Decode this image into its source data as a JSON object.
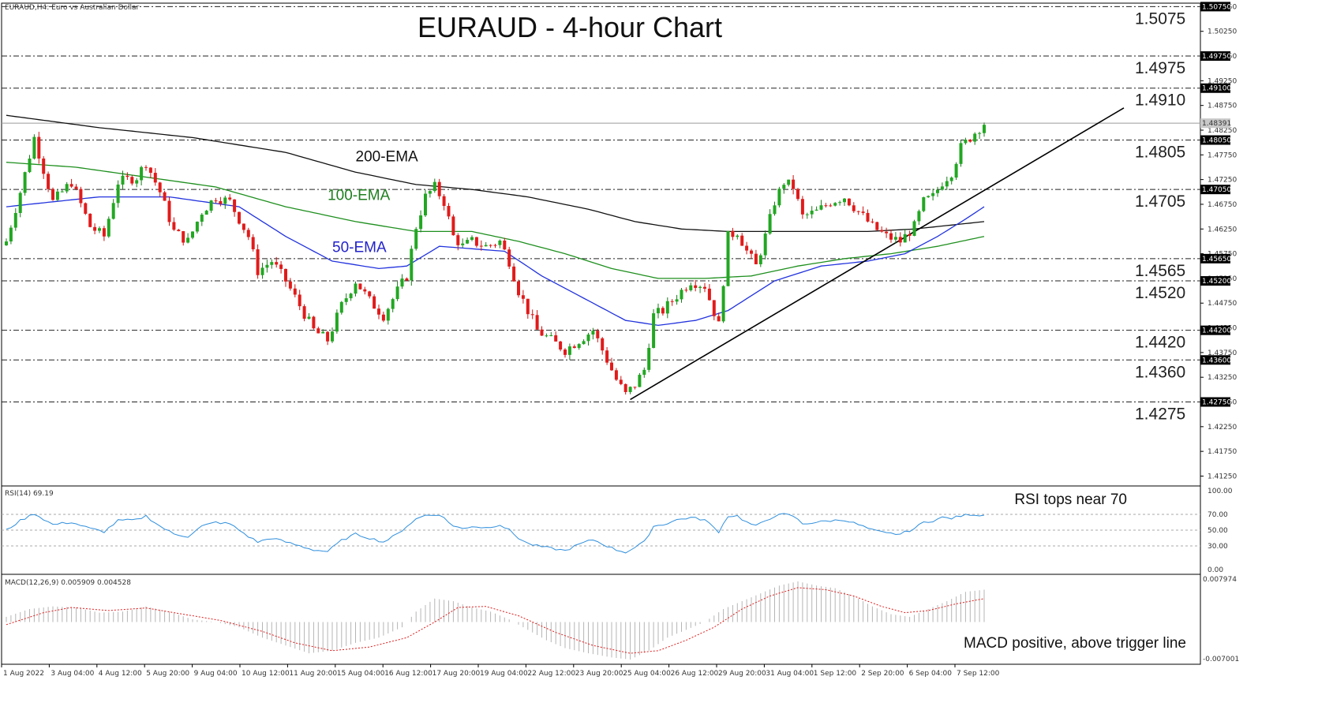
{
  "header": {
    "symbol_info": "EURAUD,H4:  Euro vs Australian Dollar",
    "title": "EURAUD - 4-hour Chart"
  },
  "chart_data": {
    "type": "candlestick",
    "title": "EURAUD - 4-hour Chart",
    "main_axis": {
      "ylim": [
        1.4105,
        1.5082
      ],
      "ticks": [
        "1.50750",
        "1.50250",
        "1.49750",
        "1.49250",
        "1.48750",
        "1.48250",
        "1.47750",
        "1.47250",
        "1.46750",
        "1.46250",
        "1.45750",
        "1.45250",
        "1.44750",
        "1.44250",
        "1.43750",
        "1.43250",
        "1.42750",
        "1.42250",
        "1.41750",
        "1.41250"
      ],
      "current_price": "1.48391"
    },
    "levels": [
      {
        "value": 1.5075,
        "label": "1.5075",
        "axis_tag": "1.50750"
      },
      {
        "value": 1.4975,
        "label": "1.4975",
        "axis_tag": "1.49750"
      },
      {
        "value": 1.491,
        "label": "1.4910",
        "axis_tag": "1.49100"
      },
      {
        "value": 1.4805,
        "label": "1.4805",
        "axis_tag": "1.48050"
      },
      {
        "value": 1.4705,
        "label": "1.4705",
        "axis_tag": "1.47050"
      },
      {
        "value": 1.4565,
        "label": "1.4565",
        "axis_tag": "1.45650"
      },
      {
        "value": 1.452,
        "label": "1.4520",
        "axis_tag": "1.45200"
      },
      {
        "value": 1.442,
        "label": "1.4420",
        "axis_tag": "1.44200"
      },
      {
        "value": 1.436,
        "label": "1.4360",
        "axis_tag": "1.43600"
      },
      {
        "value": 1.4275,
        "label": "1.4275",
        "axis_tag": "1.42750"
      }
    ],
    "x_labels": [
      "1 Aug 2022",
      "3 Aug 04:00",
      "4 Aug 12:00",
      "5 Aug 20:00",
      "9 Aug 04:00",
      "10 Aug 12:00",
      "11 Aug 20:00",
      "15 Aug 04:00",
      "16 Aug 12:00",
      "17 Aug 20:00",
      "19 Aug 04:00",
      "22 Aug 12:00",
      "23 Aug 20:00",
      "25 Aug 04:00",
      "26 Aug 12:00",
      "29 Aug 20:00",
      "31 Aug 04:00",
      "1 Sep 12:00",
      "2 Sep 20:00",
      "6 Sep 04:00",
      "7 Sep 12:00"
    ],
    "close_path": [
      [
        0,
        1.46
      ],
      [
        3,
        1.47
      ],
      [
        6,
        1.481
      ],
      [
        10,
        1.468
      ],
      [
        14,
        1.472
      ],
      [
        18,
        1.463
      ],
      [
        21,
        1.461
      ],
      [
        24,
        1.472
      ],
      [
        28,
        1.473
      ],
      [
        30,
        1.476
      ],
      [
        33,
        1.47
      ],
      [
        36,
        1.462
      ],
      [
        39,
        1.46
      ],
      [
        42,
        1.466
      ],
      [
        45,
        1.469
      ],
      [
        48,
        1.468
      ],
      [
        52,
        1.461
      ],
      [
        54,
        1.454
      ],
      [
        57,
        1.456
      ],
      [
        60,
        1.452
      ],
      [
        63,
        1.447
      ],
      [
        66,
        1.442
      ],
      [
        69,
        1.44
      ],
      [
        72,
        1.447
      ],
      [
        75,
        1.452
      ],
      [
        78,
        1.448
      ],
      [
        81,
        1.445
      ],
      [
        84,
        1.45
      ],
      [
        86,
        1.453
      ],
      [
        88,
        1.463
      ],
      [
        90,
        1.469
      ],
      [
        92,
        1.471
      ],
      [
        94,
        1.468
      ],
      [
        96,
        1.461
      ],
      [
        98,
        1.459
      ],
      [
        100,
        1.46
      ],
      [
        103,
        1.459
      ],
      [
        106,
        1.46
      ],
      [
        108,
        1.456
      ],
      [
        110,
        1.45
      ],
      [
        112,
        1.446
      ],
      [
        114,
        1.442
      ],
      [
        117,
        1.44
      ],
      [
        120,
        1.438
      ],
      [
        123,
        1.44
      ],
      [
        126,
        1.442
      ],
      [
        129,
        1.436
      ],
      [
        131,
        1.432
      ],
      [
        133,
        1.429
      ],
      [
        135,
        1.431
      ],
      [
        137,
        1.434
      ],
      [
        139,
        1.445
      ],
      [
        141,
        1.446
      ],
      [
        144,
        1.449
      ],
      [
        147,
        1.452
      ],
      [
        150,
        1.451
      ],
      [
        153,
        1.443
      ],
      [
        155,
        1.461
      ],
      [
        157,
        1.462
      ],
      [
        159,
        1.458
      ],
      [
        161,
        1.455
      ],
      [
        163,
        1.461
      ],
      [
        165,
        1.468
      ],
      [
        167,
        1.472
      ],
      [
        169,
        1.471
      ],
      [
        171,
        1.465
      ],
      [
        174,
        1.466
      ],
      [
        177,
        1.468
      ],
      [
        180,
        1.469
      ],
      [
        183,
        1.466
      ],
      [
        186,
        1.463
      ],
      [
        189,
        1.461
      ],
      [
        192,
        1.46
      ],
      [
        195,
        1.463
      ],
      [
        197,
        1.468
      ],
      [
        199,
        1.469
      ],
      [
        201,
        1.472
      ],
      [
        203,
        1.474
      ],
      [
        205,
        1.479
      ],
      [
        207,
        1.481
      ],
      [
        209,
        1.483
      ],
      [
        210,
        1.4839
      ]
    ],
    "ema50": [
      [
        0,
        1.467
      ],
      [
        20,
        1.469
      ],
      [
        35,
        1.469
      ],
      [
        50,
        1.467
      ],
      [
        60,
        1.461
      ],
      [
        70,
        1.456
      ],
      [
        80,
        1.4545
      ],
      [
        86,
        1.455
      ],
      [
        93,
        1.459
      ],
      [
        100,
        1.4585
      ],
      [
        107,
        1.458
      ],
      [
        115,
        1.453
      ],
      [
        125,
        1.448
      ],
      [
        133,
        1.444
      ],
      [
        140,
        1.443
      ],
      [
        148,
        1.444
      ],
      [
        155,
        1.446
      ],
      [
        165,
        1.452
      ],
      [
        175,
        1.455
      ],
      [
        185,
        1.456
      ],
      [
        193,
        1.4575
      ],
      [
        200,
        1.461
      ],
      [
        206,
        1.4645
      ],
      [
        210,
        1.467
      ]
    ],
    "ema100": [
      [
        0,
        1.476
      ],
      [
        15,
        1.475
      ],
      [
        30,
        1.473
      ],
      [
        45,
        1.471
      ],
      [
        60,
        1.467
      ],
      [
        75,
        1.464
      ],
      [
        88,
        1.462
      ],
      [
        100,
        1.462
      ],
      [
        110,
        1.46
      ],
      [
        120,
        1.4575
      ],
      [
        130,
        1.4545
      ],
      [
        140,
        1.4525
      ],
      [
        150,
        1.4525
      ],
      [
        160,
        1.453
      ],
      [
        170,
        1.455
      ],
      [
        180,
        1.4565
      ],
      [
        190,
        1.4575
      ],
      [
        200,
        1.459
      ],
      [
        210,
        1.461
      ]
    ],
    "ema200": [
      [
        0,
        1.4855
      ],
      [
        20,
        1.483
      ],
      [
        40,
        1.481
      ],
      [
        60,
        1.478
      ],
      [
        75,
        1.474
      ],
      [
        88,
        1.4715
      ],
      [
        100,
        1.4705
      ],
      [
        112,
        1.469
      ],
      [
        125,
        1.4665
      ],
      [
        135,
        1.464
      ],
      [
        145,
        1.4625
      ],
      [
        155,
        1.462
      ],
      [
        165,
        1.462
      ],
      [
        175,
        1.462
      ],
      [
        185,
        1.462
      ],
      [
        195,
        1.4625
      ],
      [
        205,
        1.4635
      ],
      [
        210,
        1.464
      ]
    ],
    "trendline": {
      "start": [
        134,
        1.428
      ],
      "end": [
        240,
        1.487
      ]
    },
    "ema_labels": [
      {
        "text": "200-EMA",
        "at": [
          75,
          1.4762
        ],
        "color": "#111111"
      },
      {
        "text": "100-EMA",
        "at": [
          69,
          1.4684
        ],
        "color": "#1e7f1e"
      },
      {
        "text": "50-EMA",
        "at": [
          70,
          1.4578
        ],
        "color": "#2222cc"
      }
    ],
    "rsi": {
      "label": "RSI(14) 69.19",
      "ylim": [
        0,
        100
      ],
      "ticks": [
        "100.00",
        "70.00",
        "50.00",
        "30.00",
        "0.00"
      ],
      "annotation": "RSI tops near 70",
      "values": [
        [
          0,
          50
        ],
        [
          3,
          62
        ],
        [
          6,
          71
        ],
        [
          10,
          57
        ],
        [
          14,
          60
        ],
        [
          18,
          52
        ],
        [
          21,
          48
        ],
        [
          24,
          62
        ],
        [
          28,
          63
        ],
        [
          30,
          68
        ],
        [
          33,
          55
        ],
        [
          36,
          45
        ],
        [
          39,
          42
        ],
        [
          42,
          55
        ],
        [
          45,
          60
        ],
        [
          48,
          58
        ],
        [
          52,
          42
        ],
        [
          54,
          35
        ],
        [
          57,
          40
        ],
        [
          60,
          35
        ],
        [
          63,
          30
        ],
        [
          66,
          25
        ],
        [
          69,
          23
        ],
        [
          72,
          37
        ],
        [
          75,
          45
        ],
        [
          78,
          40
        ],
        [
          81,
          35
        ],
        [
          84,
          45
        ],
        [
          86,
          55
        ],
        [
          88,
          64
        ],
        [
          90,
          69
        ],
        [
          92,
          70
        ],
        [
          94,
          66
        ],
        [
          96,
          55
        ],
        [
          98,
          52
        ],
        [
          100,
          55
        ],
        [
          103,
          53
        ],
        [
          106,
          57
        ],
        [
          108,
          50
        ],
        [
          110,
          40
        ],
        [
          112,
          33
        ],
        [
          114,
          30
        ],
        [
          117,
          27
        ],
        [
          120,
          24
        ],
        [
          123,
          32
        ],
        [
          126,
          38
        ],
        [
          129,
          30
        ],
        [
          131,
          25
        ],
        [
          133,
          22
        ],
        [
          135,
          28
        ],
        [
          137,
          35
        ],
        [
          139,
          55
        ],
        [
          141,
          57
        ],
        [
          144,
          63
        ],
        [
          147,
          66
        ],
        [
          150,
          63
        ],
        [
          153,
          48
        ],
        [
          155,
          68
        ],
        [
          157,
          68
        ],
        [
          159,
          60
        ],
        [
          161,
          55
        ],
        [
          163,
          62
        ],
        [
          165,
          68
        ],
        [
          167,
          70
        ],
        [
          169,
          68
        ],
        [
          171,
          58
        ],
        [
          174,
          60
        ],
        [
          177,
          62
        ],
        [
          180,
          63
        ],
        [
          183,
          57
        ],
        [
          186,
          50
        ],
        [
          189,
          46
        ],
        [
          192,
          45
        ],
        [
          195,
          52
        ],
        [
          197,
          60
        ],
        [
          199,
          62
        ],
        [
          201,
          66
        ],
        [
          203,
          65
        ],
        [
          205,
          68
        ],
        [
          207,
          70
        ],
        [
          209,
          69
        ],
        [
          210,
          69
        ]
      ]
    },
    "macd": {
      "label": "MACD(12,26,9) 0.005909 0.004528",
      "ticks": [
        "0.007974",
        "-0.007001"
      ],
      "annotation": "MACD positive, above trigger line",
      "ylim": [
        -0.0075,
        0.0084
      ],
      "histogram": [
        [
          0,
          0.001
        ],
        [
          5,
          0.0025
        ],
        [
          10,
          0.003
        ],
        [
          15,
          0.0028
        ],
        [
          20,
          0.0018
        ],
        [
          25,
          0.002
        ],
        [
          30,
          0.003
        ],
        [
          35,
          0.002
        ],
        [
          40,
          0.0005
        ],
        [
          45,
          0.0
        ],
        [
          50,
          -0.001
        ],
        [
          55,
          -0.003
        ],
        [
          60,
          -0.0045
        ],
        [
          65,
          -0.006
        ],
        [
          70,
          -0.0055
        ],
        [
          75,
          -0.004
        ],
        [
          80,
          -0.003
        ],
        [
          85,
          -0.001
        ],
        [
          88,
          0.002
        ],
        [
          92,
          0.0045
        ],
        [
          96,
          0.004
        ],
        [
          100,
          0.0028
        ],
        [
          104,
          0.002
        ],
        [
          108,
          0.0005
        ],
        [
          112,
          -0.0015
        ],
        [
          116,
          -0.0035
        ],
        [
          120,
          -0.005
        ],
        [
          125,
          -0.006
        ],
        [
          130,
          -0.0068
        ],
        [
          134,
          -0.0072
        ],
        [
          138,
          -0.0055
        ],
        [
          142,
          -0.003
        ],
        [
          146,
          -0.0015
        ],
        [
          150,
          0.0
        ],
        [
          154,
          0.0025
        ],
        [
          158,
          0.004
        ],
        [
          162,
          0.0055
        ],
        [
          166,
          0.007
        ],
        [
          170,
          0.0078
        ],
        [
          174,
          0.007
        ],
        [
          178,
          0.0065
        ],
        [
          182,
          0.005
        ],
        [
          186,
          0.003
        ],
        [
          190,
          0.0015
        ],
        [
          194,
          0.001
        ],
        [
          198,
          0.0025
        ],
        [
          202,
          0.004
        ],
        [
          206,
          0.0058
        ],
        [
          210,
          0.0062
        ]
      ],
      "signal": [
        [
          0,
          -0.0005
        ],
        [
          8,
          0.0018
        ],
        [
          14,
          0.0028
        ],
        [
          22,
          0.0022
        ],
        [
          30,
          0.0027
        ],
        [
          38,
          0.0015
        ],
        [
          46,
          0.0003
        ],
        [
          55,
          -0.0018
        ],
        [
          62,
          -0.004
        ],
        [
          70,
          -0.0055
        ],
        [
          78,
          -0.0048
        ],
        [
          86,
          -0.003
        ],
        [
          92,
          0.0
        ],
        [
          97,
          0.0028
        ],
        [
          103,
          0.003
        ],
        [
          110,
          0.0012
        ],
        [
          118,
          -0.002
        ],
        [
          126,
          -0.0045
        ],
        [
          134,
          -0.006
        ],
        [
          140,
          -0.0055
        ],
        [
          146,
          -0.0035
        ],
        [
          152,
          -0.001
        ],
        [
          158,
          0.0025
        ],
        [
          164,
          0.005
        ],
        [
          170,
          0.0066
        ],
        [
          176,
          0.0062
        ],
        [
          182,
          0.005
        ],
        [
          188,
          0.003
        ],
        [
          193,
          0.0018
        ],
        [
          198,
          0.0022
        ],
        [
          204,
          0.0035
        ],
        [
          210,
          0.0045
        ]
      ]
    }
  }
}
